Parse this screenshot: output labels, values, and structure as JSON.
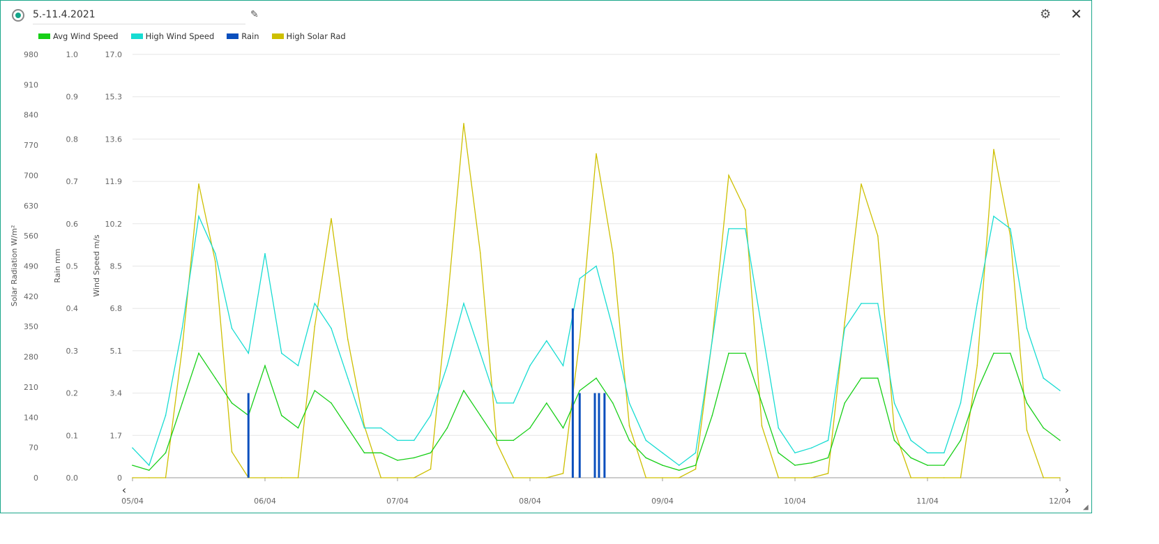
{
  "header": {
    "title": "5.-11.4.2021",
    "edit_icon": "pencil-icon",
    "settings_icon": "gear-icon",
    "close_icon": "close-icon"
  },
  "chart_data": {
    "type": "line",
    "legend": [
      "Avg Wind Speed",
      "High Wind Speed",
      "Rain",
      "High Solar Rad"
    ],
    "legend_placement": "top-left",
    "colors": {
      "Avg Wind Speed": "#17cf17",
      "High Wind Speed": "#17dcd2",
      "Rain": "#0a4fbd",
      "High Solar Rad": "#cdbf00"
    },
    "axes": {
      "solar": {
        "label": "Solar Radiation W/m²",
        "range": [
          0,
          980
        ],
        "ticks": [
          "0",
          "70",
          "140",
          "210",
          "280",
          "350",
          "420",
          "490",
          "560",
          "630",
          "700",
          "770",
          "840",
          "910",
          "980"
        ]
      },
      "rain": {
        "label": "Rain mm",
        "range": [
          0,
          1.0
        ],
        "ticks": [
          "0.0",
          "0.1",
          "0.2",
          "0.3",
          "0.4",
          "0.5",
          "0.6",
          "0.7",
          "0.8",
          "0.9",
          "1.0"
        ]
      },
      "wind": {
        "label": "Wind Speed m/s",
        "range": [
          0,
          17
        ],
        "ticks": [
          "0",
          "1.7",
          "3.4",
          "5.1",
          "6.8",
          "8.5",
          "10.2",
          "11.9",
          "13.6",
          "15.3",
          "17.0"
        ]
      },
      "x": {
        "range": [
          "05/04 00:00",
          "12/04 00:00"
        ],
        "ticks": [
          "05/04",
          "06/04",
          "07/04",
          "08/04",
          "09/04",
          "10/04",
          "11/04",
          "12/04"
        ]
      }
    },
    "grid": "horizontal",
    "x": [
      "05/04 00:00",
      "05/04 03:00",
      "05/04 06:00",
      "05/04 09:00",
      "05/04 12:00",
      "05/04 15:00",
      "05/04 18:00",
      "05/04 21:00",
      "06/04 00:00",
      "06/04 03:00",
      "06/04 06:00",
      "06/04 09:00",
      "06/04 12:00",
      "06/04 15:00",
      "06/04 18:00",
      "06/04 21:00",
      "07/04 00:00",
      "07/04 03:00",
      "07/04 06:00",
      "07/04 09:00",
      "07/04 12:00",
      "07/04 15:00",
      "07/04 18:00",
      "07/04 21:00",
      "08/04 00:00",
      "08/04 03:00",
      "08/04 06:00",
      "08/04 09:00",
      "08/04 12:00",
      "08/04 15:00",
      "08/04 18:00",
      "08/04 21:00",
      "09/04 00:00",
      "09/04 03:00",
      "09/04 06:00",
      "09/04 09:00",
      "09/04 12:00",
      "09/04 15:00",
      "09/04 18:00",
      "09/04 21:00",
      "10/04 00:00",
      "10/04 03:00",
      "10/04 06:00",
      "10/04 09:00",
      "10/04 12:00",
      "10/04 15:00",
      "10/04 18:00",
      "10/04 21:00",
      "11/04 00:00",
      "11/04 03:00",
      "11/04 06:00",
      "11/04 09:00",
      "11/04 12:00",
      "11/04 15:00",
      "11/04 18:00",
      "11/04 21:00",
      "12/04 00:00"
    ],
    "series": [
      {
        "name": "High Solar Rad",
        "axis": "solar",
        "values": [
          0,
          0,
          0,
          300,
          680,
          500,
          60,
          0,
          0,
          0,
          0,
          350,
          600,
          320,
          120,
          0,
          0,
          0,
          20,
          400,
          820,
          520,
          80,
          0,
          0,
          0,
          10,
          320,
          750,
          520,
          120,
          0,
          0,
          0,
          20,
          320,
          700,
          620,
          120,
          0,
          0,
          0,
          10,
          360,
          680,
          560,
          110,
          0,
          0,
          0,
          0,
          260,
          760,
          560,
          110,
          0,
          0
        ]
      },
      {
        "name": "High Wind Speed",
        "axis": "wind",
        "values": [
          1.2,
          0.5,
          2.5,
          6,
          10.5,
          9,
          6,
          5,
          9,
          5,
          4.5,
          7,
          6,
          4,
          2,
          2,
          1.5,
          1.5,
          2.5,
          4.5,
          7,
          5,
          3,
          3,
          4.5,
          5.5,
          4.5,
          8,
          8.5,
          6,
          3,
          1.5,
          1,
          0.5,
          1,
          5.5,
          10,
          10,
          6,
          2,
          1,
          1.2,
          1.5,
          6,
          7,
          7,
          3,
          1.5,
          1,
          1,
          3,
          7,
          10.5,
          10,
          6,
          4,
          3.5
        ]
      },
      {
        "name": "Avg Wind Speed",
        "axis": "wind",
        "values": [
          0.5,
          0.3,
          1,
          3,
          5,
          4,
          3,
          2.5,
          4.5,
          2.5,
          2,
          3.5,
          3,
          2,
          1,
          1,
          0.7,
          0.8,
          1,
          2,
          3.5,
          2.5,
          1.5,
          1.5,
          2,
          3,
          2,
          3.5,
          4,
          3,
          1.5,
          0.8,
          0.5,
          0.3,
          0.5,
          2.5,
          5,
          5,
          3,
          1,
          0.5,
          0.6,
          0.8,
          3,
          4,
          4,
          1.5,
          0.8,
          0.5,
          0.5,
          1.5,
          3.5,
          5,
          5,
          3,
          2,
          1.5
        ]
      },
      {
        "name": "Rain",
        "axis": "rain",
        "events": [
          [
            "05/04 21:00",
            0.2
          ],
          [
            "08/04 07:45",
            0.4
          ],
          [
            "08/04 09:00",
            0.2
          ],
          [
            "08/04 11:45",
            0.2
          ],
          [
            "08/04 12:30",
            0.2
          ],
          [
            "08/04 13:30",
            0.2
          ]
        ]
      }
    ]
  }
}
